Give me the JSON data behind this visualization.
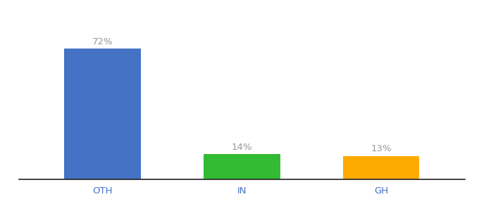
{
  "categories": [
    "OTH",
    "IN",
    "GH"
  ],
  "values": [
    72,
    14,
    13
  ],
  "bar_colors": [
    "#4472c4",
    "#33bb33",
    "#ffaa00"
  ],
  "labels": [
    "72%",
    "14%",
    "13%"
  ],
  "ylim": [
    0,
    85
  ],
  "bar_width": 0.55,
  "label_color": "#999999",
  "label_fontsize": 9.5,
  "tick_fontsize": 9.5,
  "tick_color": "#4472c4",
  "background_color": "#ffffff",
  "spine_color": "#222222"
}
